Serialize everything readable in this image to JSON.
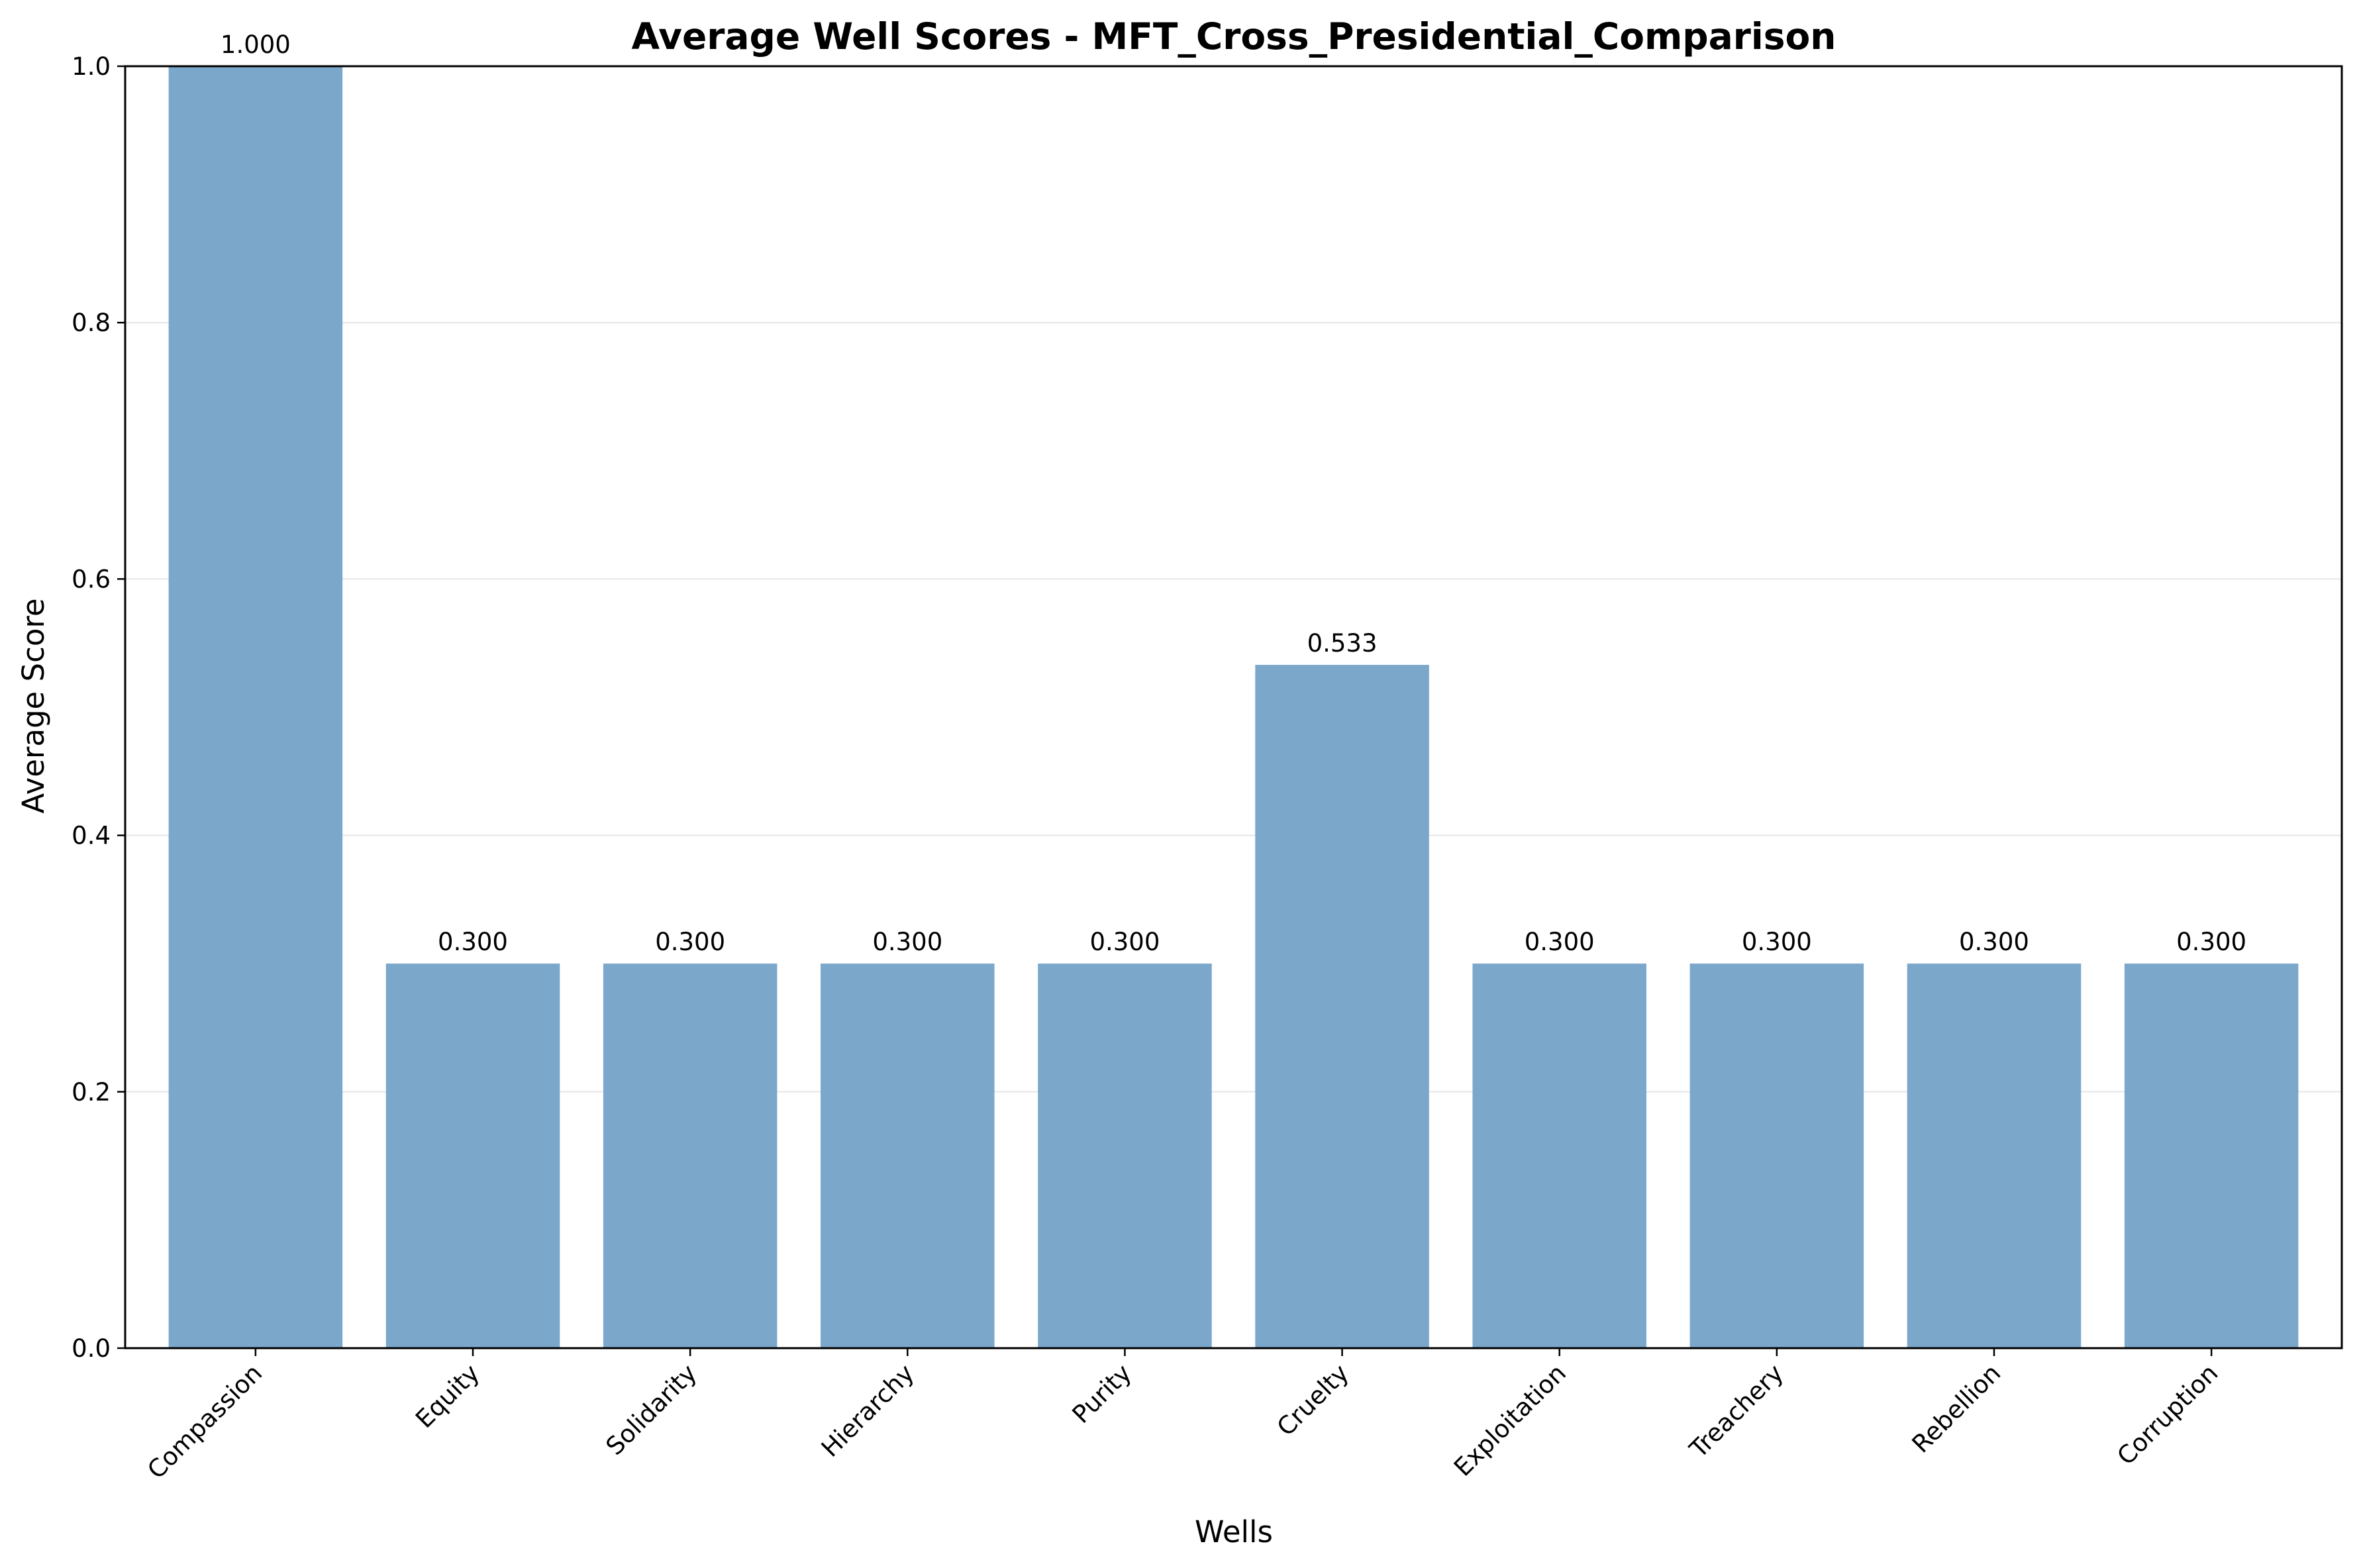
{
  "chart_data": {
    "type": "bar",
    "title": "Average Well Scores - MFT_Cross_Presidential_Comparison",
    "xlabel": "Wells",
    "ylabel": "Average Score",
    "categories": [
      "Compassion",
      "Equity",
      "Solidarity",
      "Hierarchy",
      "Purity",
      "Cruelty",
      "Exploitation",
      "Treachery",
      "Rebellion",
      "Corruption"
    ],
    "values": [
      1.0,
      0.3,
      0.3,
      0.3,
      0.3,
      0.533,
      0.3,
      0.3,
      0.3,
      0.3
    ],
    "data_labels": [
      "1.000",
      "0.300",
      "0.300",
      "0.300",
      "0.300",
      "0.533",
      "0.300",
      "0.300",
      "0.300",
      "0.300"
    ],
    "ylim": [
      0,
      1.0
    ],
    "yticks": [
      0.0,
      0.2,
      0.4,
      0.6,
      0.8,
      1.0
    ],
    "ytick_labels": [
      "0.0",
      "0.2",
      "0.4",
      "0.6",
      "0.8",
      "1.0"
    ],
    "grid": "y",
    "legend": "none",
    "bar_color": "#7ba7cb",
    "grid_color": "#e6e6e6"
  }
}
